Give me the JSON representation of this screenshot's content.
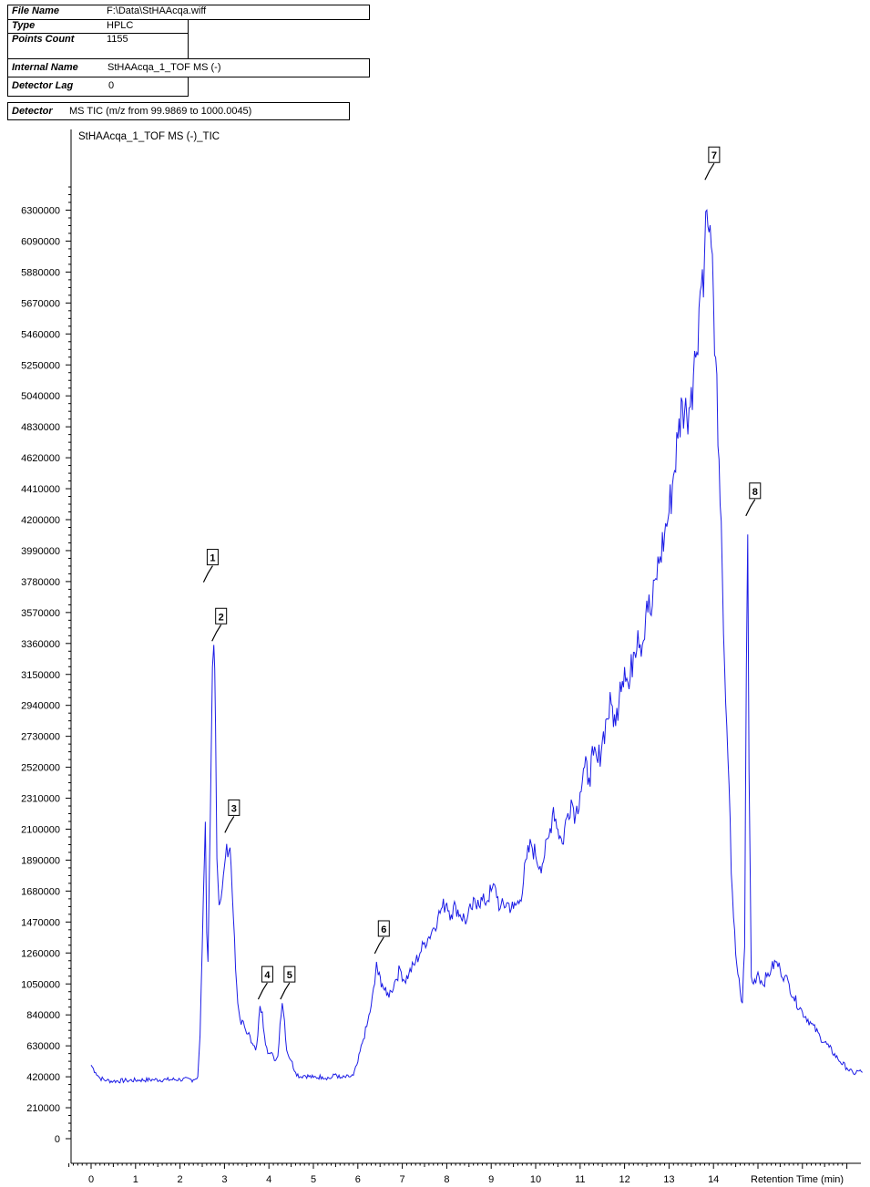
{
  "header": {
    "rows": [
      {
        "key": "File Name",
        "value": "F:\\Data\\StHAAcqa.wiff"
      },
      {
        "key": "Type",
        "value": "HPLC"
      },
      {
        "key": "Points Count",
        "value": "1155"
      },
      {
        "key": "Internal Name",
        "value": "StHAAcqa_1_TOF MS (-)"
      },
      {
        "key": "Detector Lag",
        "value": "0"
      },
      {
        "key": "Detector",
        "value": "MS TIC (m/z from 99.9869 to 1000.0045)"
      }
    ]
  },
  "chart_data": {
    "type": "line",
    "title": "StHAAcqa_1_TOF MS (-)_TIC",
    "xlabel": "Retention Time (min)",
    "ylabel": "",
    "xlim": [
      -0.5,
      17.0
    ],
    "ylim": [
      -300000,
      7400000
    ],
    "x_ticks": [
      0,
      1,
      2,
      3,
      4,
      5,
      6,
      7,
      8,
      9,
      10,
      11,
      12,
      13,
      14
    ],
    "y_ticks": [
      0,
      210000,
      420000,
      630000,
      840000,
      1050000,
      1260000,
      1470000,
      1680000,
      1890000,
      2100000,
      2310000,
      2520000,
      2730000,
      2940000,
      3150000,
      3360000,
      3570000,
      3780000,
      3990000,
      4200000,
      4410000,
      4620000,
      4830000,
      5040000,
      5250000,
      5460000,
      5670000,
      5880000,
      6090000,
      6300000
    ],
    "grid": false,
    "legend": "none",
    "color": "#1c1ce6",
    "series": [
      {
        "points": [
          [
            0.0,
            500000
          ],
          [
            0.1,
            450000
          ],
          [
            0.2,
            410000
          ],
          [
            0.35,
            395000
          ],
          [
            0.5,
            390000
          ],
          [
            0.8,
            395000
          ],
          [
            1.1,
            398000
          ],
          [
            1.4,
            400000
          ],
          [
            1.7,
            400000
          ],
          [
            2.0,
            402000
          ],
          [
            2.3,
            400000
          ],
          [
            2.4,
            420000
          ],
          [
            2.45,
            700000
          ],
          [
            2.5,
            1300000
          ],
          [
            2.55,
            1900000
          ],
          [
            2.57,
            2150000
          ],
          [
            2.6,
            1400000
          ],
          [
            2.63,
            1200000
          ],
          [
            2.66,
            1800000
          ],
          [
            2.7,
            2600000
          ],
          [
            2.73,
            3200000
          ],
          [
            2.76,
            3350000
          ],
          [
            2.8,
            2800000
          ],
          [
            2.83,
            1900000
          ],
          [
            2.86,
            1700000
          ],
          [
            2.9,
            1600000
          ],
          [
            2.95,
            1700000
          ],
          [
            3.0,
            1850000
          ],
          [
            3.05,
            2000000
          ],
          [
            3.1,
            1950000
          ],
          [
            3.15,
            1850000
          ],
          [
            3.2,
            1500000
          ],
          [
            3.25,
            1150000
          ],
          [
            3.3,
            920000
          ],
          [
            3.35,
            810000
          ],
          [
            3.45,
            760000
          ],
          [
            3.55,
            720000
          ],
          [
            3.6,
            650000
          ],
          [
            3.7,
            600000
          ],
          [
            3.75,
            700000
          ],
          [
            3.8,
            900000
          ],
          [
            3.85,
            860000
          ],
          [
            3.9,
            700000
          ],
          [
            3.95,
            620000
          ],
          [
            4.0,
            580000
          ],
          [
            4.1,
            560000
          ],
          [
            4.15,
            530000
          ],
          [
            4.2,
            560000
          ],
          [
            4.25,
            780000
          ],
          [
            4.3,
            920000
          ],
          [
            4.35,
            800000
          ],
          [
            4.4,
            600000
          ],
          [
            4.5,
            530000
          ],
          [
            4.6,
            450000
          ],
          [
            4.7,
            420000
          ],
          [
            4.8,
            430000
          ],
          [
            5.0,
            415000
          ],
          [
            5.2,
            420000
          ],
          [
            5.4,
            410000
          ],
          [
            5.5,
            440000
          ],
          [
            5.6,
            410000
          ],
          [
            5.8,
            420000
          ],
          [
            5.9,
            430000
          ],
          [
            6.0,
            520000
          ],
          [
            6.1,
            650000
          ],
          [
            6.2,
            760000
          ],
          [
            6.3,
            900000
          ],
          [
            6.38,
            1050000
          ],
          [
            6.42,
            1200000
          ],
          [
            6.46,
            1110000
          ],
          [
            6.55,
            1050000
          ],
          [
            6.65,
            970000
          ],
          [
            6.75,
            1000000
          ],
          [
            6.85,
            1080000
          ],
          [
            6.95,
            1150000
          ],
          [
            7.05,
            1070000
          ],
          [
            7.15,
            1120000
          ],
          [
            7.3,
            1200000
          ],
          [
            7.4,
            1260000
          ],
          [
            7.5,
            1330000
          ],
          [
            7.6,
            1370000
          ],
          [
            7.7,
            1430000
          ],
          [
            7.8,
            1500000
          ],
          [
            7.9,
            1570000
          ],
          [
            8.0,
            1600000
          ],
          [
            8.1,
            1520000
          ],
          [
            8.2,
            1580000
          ],
          [
            8.3,
            1520000
          ],
          [
            8.45,
            1480000
          ],
          [
            8.55,
            1560000
          ],
          [
            8.7,
            1620000
          ],
          [
            8.85,
            1600000
          ],
          [
            9.0,
            1680000
          ],
          [
            9.1,
            1700000
          ],
          [
            9.2,
            1560000
          ],
          [
            9.35,
            1600000
          ],
          [
            9.5,
            1560000
          ],
          [
            9.65,
            1620000
          ],
          [
            9.8,
            1900000
          ],
          [
            9.9,
            2000000
          ],
          [
            10.0,
            1920000
          ],
          [
            10.1,
            1850000
          ],
          [
            10.2,
            1920000
          ],
          [
            10.3,
            2050000
          ],
          [
            10.4,
            2250000
          ],
          [
            10.5,
            2100000
          ],
          [
            10.6,
            2000000
          ],
          [
            10.7,
            2180000
          ],
          [
            10.8,
            2300000
          ],
          [
            10.9,
            2200000
          ],
          [
            11.0,
            2350000
          ],
          [
            11.1,
            2520000
          ],
          [
            11.2,
            2450000
          ],
          [
            11.3,
            2600000
          ],
          [
            11.4,
            2550000
          ],
          [
            11.5,
            2700000
          ],
          [
            11.6,
            2850000
          ],
          [
            11.7,
            2950000
          ],
          [
            11.8,
            2800000
          ],
          [
            11.9,
            3100000
          ],
          [
            12.0,
            3200000
          ],
          [
            12.1,
            3050000
          ],
          [
            12.2,
            3300000
          ],
          [
            12.3,
            3450000
          ],
          [
            12.4,
            3350000
          ],
          [
            12.5,
            3650000
          ],
          [
            12.6,
            3550000
          ],
          [
            12.7,
            3800000
          ],
          [
            12.8,
            3950000
          ],
          [
            12.9,
            4100000
          ],
          [
            13.0,
            4250000
          ],
          [
            13.1,
            4500000
          ],
          [
            13.2,
            4750000
          ],
          [
            13.3,
            5000000
          ],
          [
            13.4,
            4900000
          ],
          [
            13.5,
            5100000
          ],
          [
            13.6,
            5300000
          ],
          [
            13.7,
            5750000
          ],
          [
            13.8,
            6000000
          ],
          [
            13.85,
            6300000
          ],
          [
            13.9,
            6150000
          ],
          [
            13.95,
            6050000
          ],
          [
            14.0,
            5700000
          ],
          [
            14.05,
            5300000
          ],
          [
            14.1,
            4700000
          ],
          [
            14.15,
            4300000
          ],
          [
            14.2,
            3800000
          ],
          [
            14.25,
            3200000
          ],
          [
            14.3,
            2800000
          ],
          [
            14.35,
            2400000
          ],
          [
            14.4,
            1800000
          ],
          [
            14.45,
            1500000
          ],
          [
            14.5,
            1250000
          ],
          [
            14.6,
            1000000
          ],
          [
            14.65,
            920000
          ],
          [
            14.7,
            1300000
          ],
          [
            14.74,
            3200000
          ],
          [
            14.77,
            4100000
          ],
          [
            14.8,
            2500000
          ],
          [
            14.85,
            1100000
          ],
          [
            14.9,
            1050000
          ],
          [
            15.0,
            1130000
          ],
          [
            15.1,
            1050000
          ],
          [
            15.2,
            1100000
          ],
          [
            15.3,
            1150000
          ],
          [
            15.4,
            1200000
          ],
          [
            15.5,
            1150000
          ],
          [
            15.6,
            1100000
          ],
          [
            15.7,
            1050000
          ],
          [
            15.8,
            960000
          ],
          [
            16.0,
            860000
          ],
          [
            16.2,
            780000
          ],
          [
            16.4,
            690000
          ],
          [
            16.6,
            620000
          ],
          [
            16.8,
            540000
          ],
          [
            17.0,
            480000
          ],
          [
            17.15,
            440000
          ],
          [
            17.25,
            460000
          ],
          [
            17.35,
            450000
          ]
        ]
      }
    ],
    "peak_markers": [
      {
        "label": "1",
        "x": 2.57,
        "y": 3850000
      },
      {
        "label": "2",
        "x": 2.76,
        "y": 3450000
      },
      {
        "label": "3",
        "x": 3.05,
        "y": 2150000
      },
      {
        "label": "4",
        "x": 3.8,
        "y": 1020000
      },
      {
        "label": "5",
        "x": 4.3,
        "y": 1020000
      },
      {
        "label": "6",
        "x": 6.42,
        "y": 1330000
      },
      {
        "label": "7",
        "x": 13.85,
        "y": 6580000
      },
      {
        "label": "8",
        "x": 14.77,
        "y": 4300000
      }
    ]
  }
}
